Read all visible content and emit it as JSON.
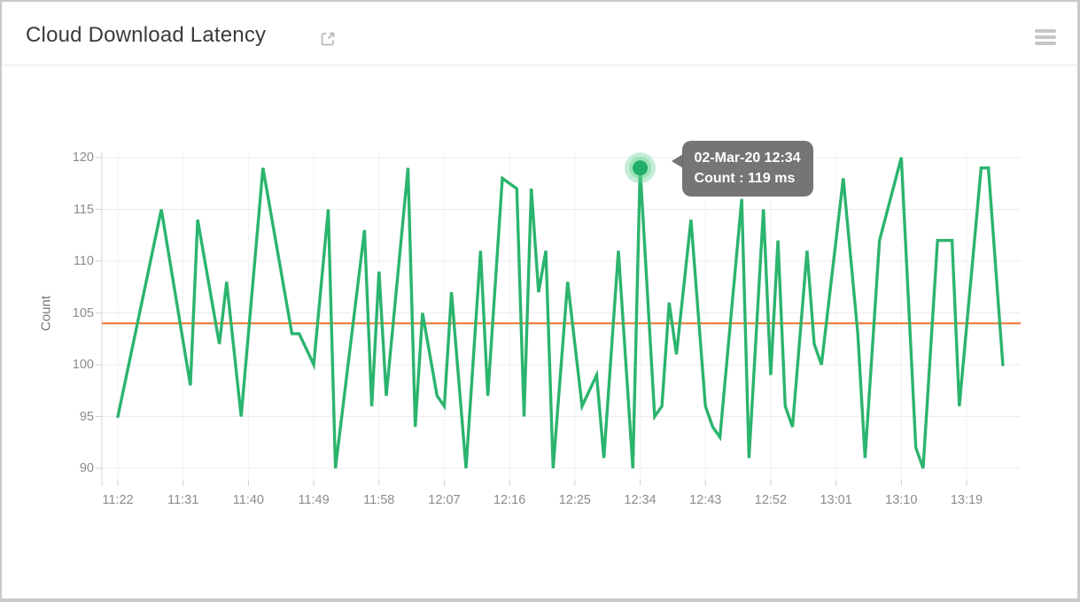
{
  "header": {
    "title": "Cloud Download Latency",
    "external_link_icon": "open-in-new-window",
    "menu_icon": "hamburger-menu"
  },
  "chart_data": {
    "type": "line",
    "title": "Cloud Download Latency",
    "xlabel": "",
    "ylabel": "Count",
    "unit": "ms",
    "grid": true,
    "legend": "none",
    "ylim": [
      90,
      120
    ],
    "y_ticks": [
      90,
      95,
      100,
      105,
      110,
      115,
      120
    ],
    "x_ticks": [
      "11:22",
      "11:31",
      "11:40",
      "11:49",
      "11:58",
      "12:07",
      "12:16",
      "12:25",
      "12:34",
      "12:43",
      "12:52",
      "13:01",
      "13:10",
      "13:19"
    ],
    "colors": {
      "line": "#2bb46e",
      "reference": "#ec7426",
      "halo": "#63d093",
      "grid": "#ececec",
      "grid_vertical": "#f3f3f3",
      "axis": "#d4d4d4"
    },
    "reference_line": {
      "value": 104,
      "color": "#ec7426"
    },
    "highlighted_point": {
      "time": "12:34",
      "value": 119
    },
    "tooltip": {
      "line1": "02-Mar-20 12:34",
      "line2": "Count : 119 ms"
    },
    "series": [
      {
        "name": "Count",
        "color": "#2bb46e",
        "points": [
          [
            "11:22",
            95
          ],
          [
            "11:25",
            105
          ],
          [
            "11:28",
            115
          ],
          [
            "11:32",
            98
          ],
          [
            "11:33",
            114
          ],
          [
            "11:36",
            102
          ],
          [
            "11:37",
            108
          ],
          [
            "11:39",
            95
          ],
          [
            "11:42",
            119
          ],
          [
            "11:46",
            103
          ],
          [
            "11:47",
            103
          ],
          [
            "11:49",
            100
          ],
          [
            "11:51",
            115
          ],
          [
            "11:52",
            90
          ],
          [
            "11:56",
            113
          ],
          [
            "11:57",
            96
          ],
          [
            "11:58",
            109
          ],
          [
            "11:59",
            97
          ],
          [
            "12:02",
            119
          ],
          [
            "12:03",
            94
          ],
          [
            "12:04",
            105
          ],
          [
            "12:06",
            97
          ],
          [
            "12:07",
            96
          ],
          [
            "12:08",
            107
          ],
          [
            "12:10",
            90
          ],
          [
            "12:12",
            111
          ],
          [
            "12:13",
            97
          ],
          [
            "12:15",
            118
          ],
          [
            "12:17",
            117
          ],
          [
            "12:18",
            95
          ],
          [
            "12:19",
            117
          ],
          [
            "12:20",
            107
          ],
          [
            "12:21",
            111
          ],
          [
            "12:22",
            90
          ],
          [
            "12:24",
            108
          ],
          [
            "12:26",
            96
          ],
          [
            "12:28",
            99
          ],
          [
            "12:29",
            91
          ],
          [
            "12:31",
            111
          ],
          [
            "12:33",
            90
          ],
          [
            "12:34",
            119
          ],
          [
            "12:36",
            95
          ],
          [
            "12:37",
            96
          ],
          [
            "12:38",
            106
          ],
          [
            "12:39",
            101
          ],
          [
            "12:41",
            114
          ],
          [
            "12:43",
            96
          ],
          [
            "12:44",
            94
          ],
          [
            "12:45",
            93
          ],
          [
            "12:48",
            116
          ],
          [
            "12:49",
            91
          ],
          [
            "12:51",
            115
          ],
          [
            "12:52",
            99
          ],
          [
            "12:53",
            112
          ],
          [
            "12:54",
            96
          ],
          [
            "12:55",
            94
          ],
          [
            "12:57",
            111
          ],
          [
            "12:58",
            102
          ],
          [
            "12:59",
            100
          ],
          [
            "13:02",
            118
          ],
          [
            "13:04",
            103
          ],
          [
            "13:05",
            91
          ],
          [
            "13:07",
            112
          ],
          [
            "13:10",
            120
          ],
          [
            "13:12",
            92
          ],
          [
            "13:13",
            90
          ],
          [
            "13:15",
            112
          ],
          [
            "13:17",
            112
          ],
          [
            "13:18",
            96
          ],
          [
            "13:21",
            119
          ],
          [
            "13:22",
            119
          ],
          [
            "13:24",
            100
          ]
        ]
      }
    ]
  }
}
